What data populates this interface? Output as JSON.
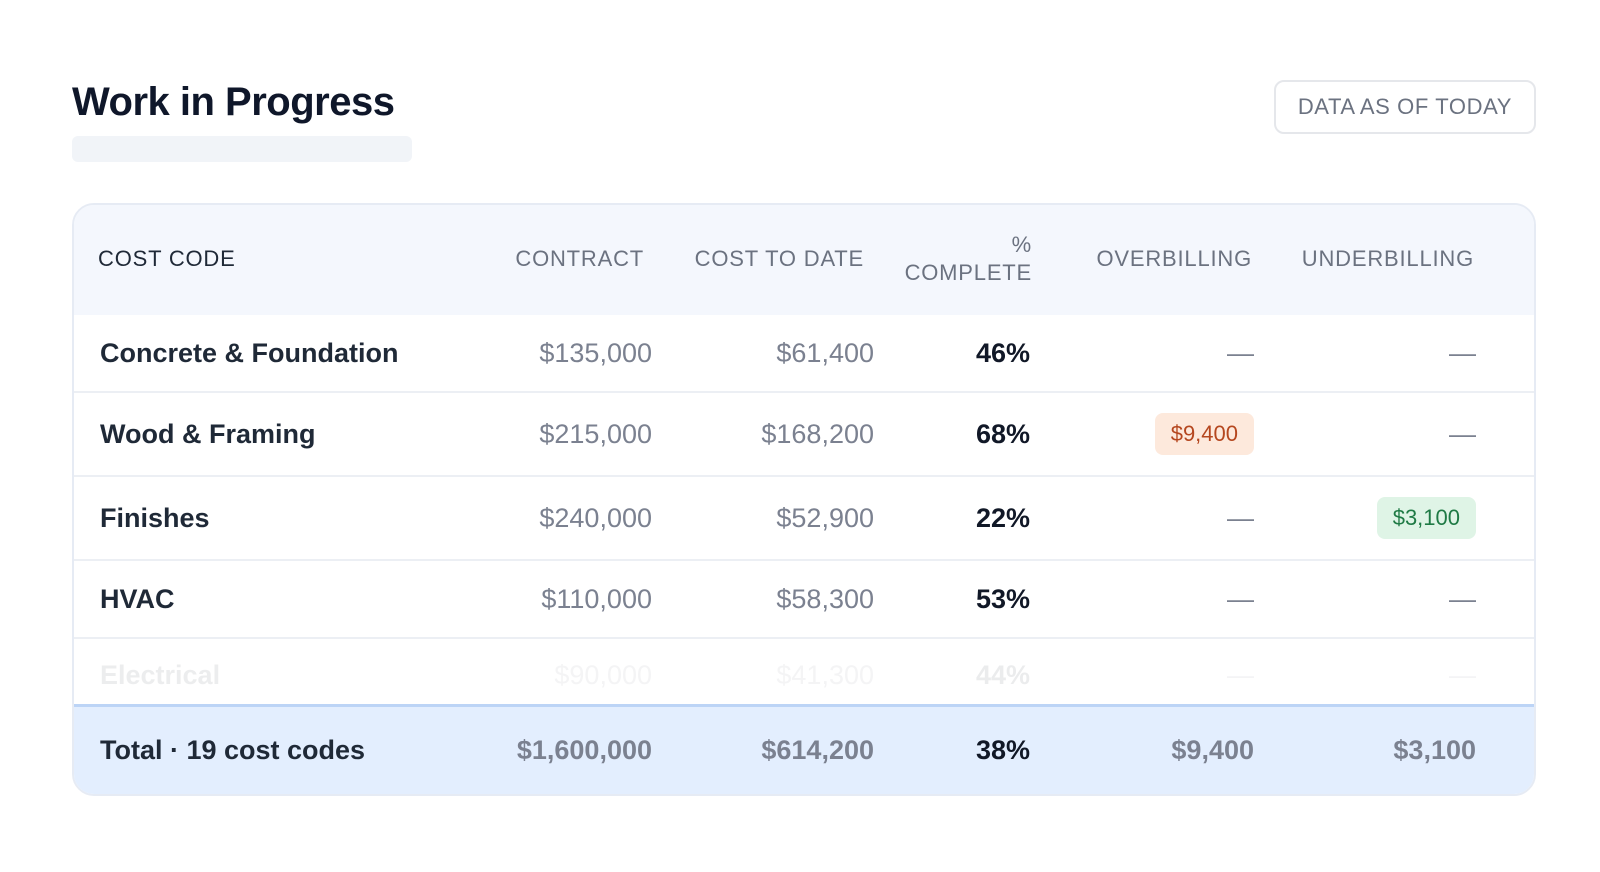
{
  "header": {
    "title": "Work in Progress",
    "as_of_label": "DATA AS OF TODAY"
  },
  "table": {
    "columns": {
      "cost_code": "COST CODE",
      "contract": "CONTRACT",
      "cost_to_date": "COST TO DATE",
      "pct_complete_line1": "%",
      "pct_complete_line2": "COMPLETE",
      "overbilling": "OVERBILLING",
      "underbilling": "UNDERBILLING"
    },
    "rows": [
      {
        "name": "Concrete & Foundation",
        "contract": "$135,000",
        "cost_to_date": "$61,400",
        "pct": "46%",
        "overbilling": "—",
        "underbilling": "—"
      },
      {
        "name": "Wood & Framing",
        "contract": "$215,000",
        "cost_to_date": "$168,200",
        "pct": "68%",
        "overbilling": "$9,400",
        "underbilling": "—"
      },
      {
        "name": "Finishes",
        "contract": "$240,000",
        "cost_to_date": "$52,900",
        "pct": "22%",
        "overbilling": "—",
        "underbilling": "$3,100"
      },
      {
        "name": "HVAC",
        "contract": "$110,000",
        "cost_to_date": "$58,300",
        "pct": "53%",
        "overbilling": "—",
        "underbilling": "—"
      },
      {
        "name": "Electrical",
        "contract": "$90,000",
        "cost_to_date": "$41,300",
        "pct": "44%",
        "overbilling": "—",
        "underbilling": "—"
      }
    ],
    "total": {
      "label": "Total · 19 cost codes",
      "contract": "$1,600,000",
      "cost_to_date": "$614,200",
      "pct": "38%",
      "overbilling": "$9,400",
      "underbilling": "$3,100"
    }
  },
  "colors": {
    "overbilling_badge_bg": "#fde9dc",
    "overbilling_badge_text": "#b5471f",
    "underbilling_badge_bg": "#dff4e6",
    "underbilling_badge_text": "#1f7a45",
    "total_row_bg": "#e3eefe"
  }
}
